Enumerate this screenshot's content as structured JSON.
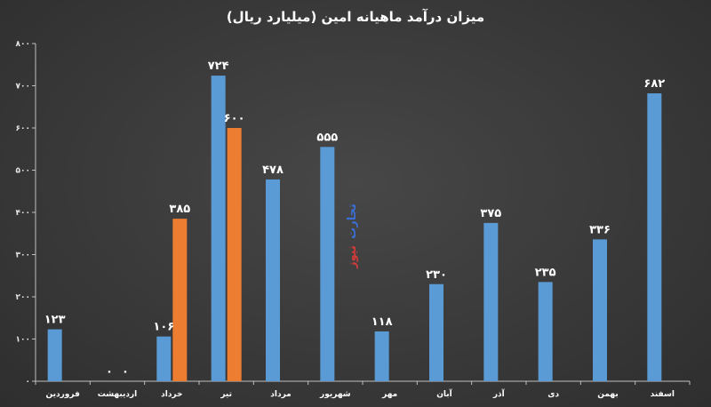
{
  "chart_data": {
    "type": "bar",
    "title": "میزان درآمد ماهیانه امین (میلیارد ریال)",
    "categories": [
      "فروردین",
      "اردیبهشت",
      "خرداد",
      "تیر",
      "مرداد",
      "شهریور",
      "مهر",
      "آبان",
      "آذر",
      "دی",
      "بهمن",
      "اسفند"
    ],
    "series": [
      {
        "color": "#5b9bd5",
        "values": [
          123,
          0,
          106,
          724,
          478,
          555,
          118,
          230,
          375,
          235,
          336,
          682
        ],
        "labels": [
          "۱۲۳",
          "۰",
          "۱۰۶",
          "۷۲۴",
          "۴۷۸",
          "۵۵۵",
          "۱۱۸",
          "۲۳۰",
          "۳۷۵",
          "۲۳۵",
          "۳۳۶",
          "۶۸۲"
        ]
      },
      {
        "color": "#ed7d31",
        "values": [
          null,
          0,
          385,
          600,
          null,
          null,
          null,
          null,
          null,
          null,
          null,
          null
        ],
        "labels": [
          "",
          "۰",
          "۳۸۵",
          "۶۰۰",
          "",
          "",
          "",
          "",
          "",
          "",
          "",
          ""
        ]
      }
    ],
    "ylim": [
      0,
      800
    ],
    "yticks": [
      0,
      100,
      200,
      300,
      400,
      500,
      600,
      700,
      800
    ],
    "ytick_labels": [
      "۰",
      "۱۰۰",
      "۲۰۰",
      "۳۰۰",
      "۴۰۰",
      "۵۰۰",
      "۶۰۰",
      "۷۰۰",
      "۸۰۰"
    ],
    "grid": false,
    "legend": "none",
    "watermark": {
      "part1": "تجارت",
      "part2": "نیوز",
      "color1": "#3b6fd6",
      "color2": "#d23a3a"
    }
  }
}
